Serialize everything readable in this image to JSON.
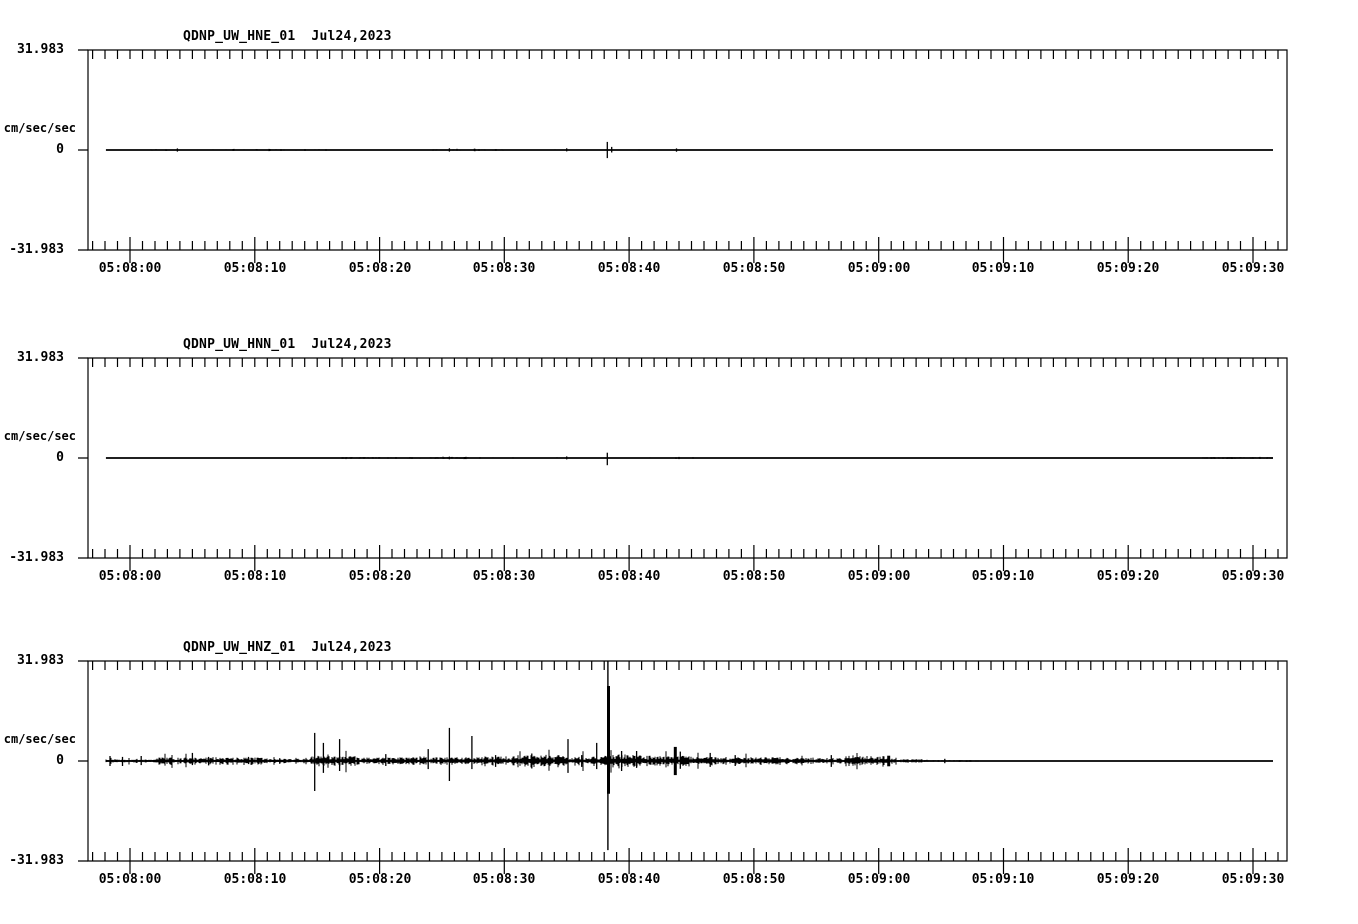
{
  "page": {
    "background_color": "#ffffff",
    "trace_color": "#000000",
    "text_color": "#000000"
  },
  "chart_data": [
    {
      "type": "line",
      "kind": "seismogram",
      "title": "QDNP_UW_HNE_01  Jul24,2023",
      "station": "QDNP_UW_HNE_01",
      "date": "Jul24,2023",
      "ylabel": "cm/sec/sec",
      "ylim": [
        -31.983,
        31.983
      ],
      "yticks": [
        31.983,
        0,
        -31.983
      ],
      "ytick_labels": [
        "31.983",
        "0",
        "-31.983"
      ],
      "x_start": "05:08:00",
      "x_end": "05:09:30",
      "x_major_interval_sec": 10,
      "x_minor_interval_sec": 1,
      "x_major_labels": [
        "05:08:00",
        "05:08:10",
        "05:08:20",
        "05:08:30",
        "05:08:40",
        "05:08:50",
        "05:09:00",
        "05:09:10",
        "05:09:20",
        "05:09:30"
      ],
      "trace_span_sec": [
        -1.9,
        91.5
      ],
      "noise": [
        {
          "t0": -1.9,
          "t1": 1.5,
          "a": 0.06
        },
        {
          "t0": 1.5,
          "t1": 16,
          "a": 0.18
        },
        {
          "t0": 16,
          "t1": 24,
          "a": 0.1
        },
        {
          "t0": 24,
          "t1": 30,
          "a": 0.2
        },
        {
          "t0": 30,
          "t1": 46,
          "a": 0.12
        },
        {
          "t0": 46,
          "t1": 91.5,
          "a": 0.06
        }
      ],
      "events": [
        {
          "t": 3.8,
          "up": 0.5,
          "down": 0.5
        },
        {
          "t": 25.6,
          "up": 0.55,
          "down": 0.5
        },
        {
          "t": 27.6,
          "up": 0.4,
          "down": 0.35
        },
        {
          "t": 35.0,
          "up": 0.55,
          "down": 0.45
        },
        {
          "t": 38.25,
          "up": 2.6,
          "down": 2.6
        },
        {
          "t": 38.6,
          "up": 1.0,
          "down": 0.8
        },
        {
          "t": 43.8,
          "up": 0.5,
          "down": 0.55
        }
      ]
    },
    {
      "type": "line",
      "kind": "seismogram",
      "title": "QDNP_UW_HNN_01  Jul24,2023",
      "station": "QDNP_UW_HNN_01",
      "date": "Jul24,2023",
      "ylabel": "cm/sec/sec",
      "ylim": [
        -31.983,
        31.983
      ],
      "yticks": [
        31.983,
        0,
        -31.983
      ],
      "ytick_labels": [
        "31.983",
        "0",
        "-31.983"
      ],
      "x_start": "05:08:00",
      "x_end": "05:09:30",
      "x_major_interval_sec": 10,
      "x_minor_interval_sec": 1,
      "x_major_labels": [
        "05:08:00",
        "05:08:10",
        "05:08:20",
        "05:08:30",
        "05:08:40",
        "05:08:50",
        "05:09:00",
        "05:09:10",
        "05:09:20",
        "05:09:30"
      ],
      "trace_span_sec": [
        -1.9,
        91.5
      ],
      "noise": [
        {
          "t0": -1.9,
          "t1": 17,
          "a": 0.08
        },
        {
          "t0": 17,
          "t1": 20,
          "a": 0.3
        },
        {
          "t0": 20,
          "t1": 24,
          "a": 0.18
        },
        {
          "t0": 24,
          "t1": 27,
          "a": 0.32
        },
        {
          "t0": 27,
          "t1": 33,
          "a": 0.15
        },
        {
          "t0": 33,
          "t1": 38,
          "a": 0.12
        },
        {
          "t0": 38.5,
          "t1": 48,
          "a": 0.15
        },
        {
          "t0": 48,
          "t1": 86,
          "a": 0.07
        },
        {
          "t0": 86,
          "t1": 91.5,
          "a": 0.3
        }
      ],
      "events": [
        {
          "t": 25.6,
          "up": 0.45,
          "down": 0.4
        },
        {
          "t": 35.0,
          "up": 0.5,
          "down": 0.45
        },
        {
          "t": 38.25,
          "up": 1.7,
          "down": 2.3
        },
        {
          "t": 44.0,
          "up": 0.35,
          "down": 0.35
        }
      ]
    },
    {
      "type": "line",
      "kind": "seismogram",
      "title": "QDNP_UW_HNZ_01  Jul24,2023",
      "station": "QDNP_UW_HNZ_01",
      "date": "Jul24,2023",
      "ylabel": "cm/sec/sec",
      "ylim": [
        -31.983,
        31.983
      ],
      "yticks": [
        31.983,
        0,
        -31.983
      ],
      "ytick_labels": [
        "31.983",
        "0",
        "-31.983"
      ],
      "x_start": "05:08:00",
      "x_end": "05:09:30",
      "x_major_interval_sec": 10,
      "x_minor_interval_sec": 1,
      "x_major_labels": [
        "05:08:00",
        "05:08:10",
        "05:08:20",
        "05:08:30",
        "05:08:40",
        "05:08:50",
        "05:09:00",
        "05:09:10",
        "05:09:20",
        "05:09:30"
      ],
      "trace_span_sec": [
        -1.9,
        91.5
      ],
      "noise": [
        {
          "t0": -1.9,
          "t1": 2,
          "a": 0.5
        },
        {
          "t0": 2,
          "t1": 11,
          "a": 1.1
        },
        {
          "t0": 11,
          "t1": 14.5,
          "a": 0.7
        },
        {
          "t0": 14.5,
          "t1": 18,
          "a": 1.6
        },
        {
          "t0": 18,
          "t1": 21.5,
          "a": 1.1
        },
        {
          "t0": 21.5,
          "t1": 28,
          "a": 1.2
        },
        {
          "t0": 28,
          "t1": 31,
          "a": 1.5
        },
        {
          "t0": 31,
          "t1": 34.5,
          "a": 1.9
        },
        {
          "t0": 34.5,
          "t1": 38,
          "a": 1.5
        },
        {
          "t0": 38,
          "t1": 40.5,
          "a": 2.2
        },
        {
          "t0": 40.5,
          "t1": 45,
          "a": 1.8
        },
        {
          "t0": 45,
          "t1": 52,
          "a": 1.3
        },
        {
          "t0": 52,
          "t1": 58,
          "a": 1.0
        },
        {
          "t0": 58,
          "t1": 60.8,
          "a": 1.6
        },
        {
          "t0": 60.8,
          "t1": 63.5,
          "a": 0.6
        },
        {
          "t0": 63.5,
          "t1": 68,
          "a": 0.3
        }
      ],
      "events": [
        {
          "t": -1.6,
          "up": 1.6,
          "down": 1.6
        },
        {
          "t": -0.6,
          "up": 1.3,
          "down": 1.6
        },
        {
          "t": 0.9,
          "up": 1.6,
          "down": 1.3
        },
        {
          "t": 3.2,
          "up": 1.0,
          "down": 1.0
        },
        {
          "t": 5.0,
          "up": 2.6,
          "down": 1.3
        },
        {
          "t": 6.3,
          "up": 1.3,
          "down": 1.4
        },
        {
          "t": 9.5,
          "up": 1.3,
          "down": 1.0
        },
        {
          "t": 12.0,
          "up": 0.9,
          "down": 0.9
        },
        {
          "t": 14.8,
          "up": 9.0,
          "down": 9.6
        },
        {
          "t": 15.5,
          "up": 5.8,
          "down": 3.8
        },
        {
          "t": 16.8,
          "up": 7.0,
          "down": 3.2
        },
        {
          "t": 20.5,
          "up": 2.2,
          "down": 1.6
        },
        {
          "t": 23.9,
          "up": 3.8,
          "down": 2.6
        },
        {
          "t": 25.6,
          "up": 10.6,
          "down": 6.4
        },
        {
          "t": 27.4,
          "up": 8.0,
          "down": 2.6
        },
        {
          "t": 29.3,
          "up": 1.9,
          "down": 1.9
        },
        {
          "t": 32.2,
          "up": 2.4,
          "down": 2.4
        },
        {
          "t": 35.1,
          "up": 7.0,
          "down": 3.8
        },
        {
          "t": 36.2,
          "up": 1.9,
          "down": 1.9
        },
        {
          "t": 37.4,
          "up": 5.8,
          "down": 2.6
        },
        {
          "t": 38.3,
          "up": 31.983,
          "down": 28.5,
          "w": 1.4,
          "clipped": true
        },
        {
          "t": 38.35,
          "up": 24.0,
          "down": 10.5,
          "w": 3
        },
        {
          "t": 39.4,
          "up": 3.2,
          "down": 3.2
        },
        {
          "t": 40.6,
          "up": 3.2,
          "down": 2.2
        },
        {
          "t": 43.7,
          "up": 4.5,
          "down": 4.5,
          "w": 3
        },
        {
          "t": 44.1,
          "up": 3.0,
          "down": 2.5
        },
        {
          "t": 46.5,
          "up": 2.6,
          "down": 1.9
        },
        {
          "t": 48.5,
          "up": 1.9,
          "down": 1.6
        },
        {
          "t": 56.2,
          "up": 1.9,
          "down": 1.9
        },
        {
          "t": 60.8,
          "up": 1.7,
          "down": 1.7,
          "w": 3
        },
        {
          "t": 65.3,
          "up": 0.7,
          "down": 0.7
        }
      ]
    }
  ]
}
